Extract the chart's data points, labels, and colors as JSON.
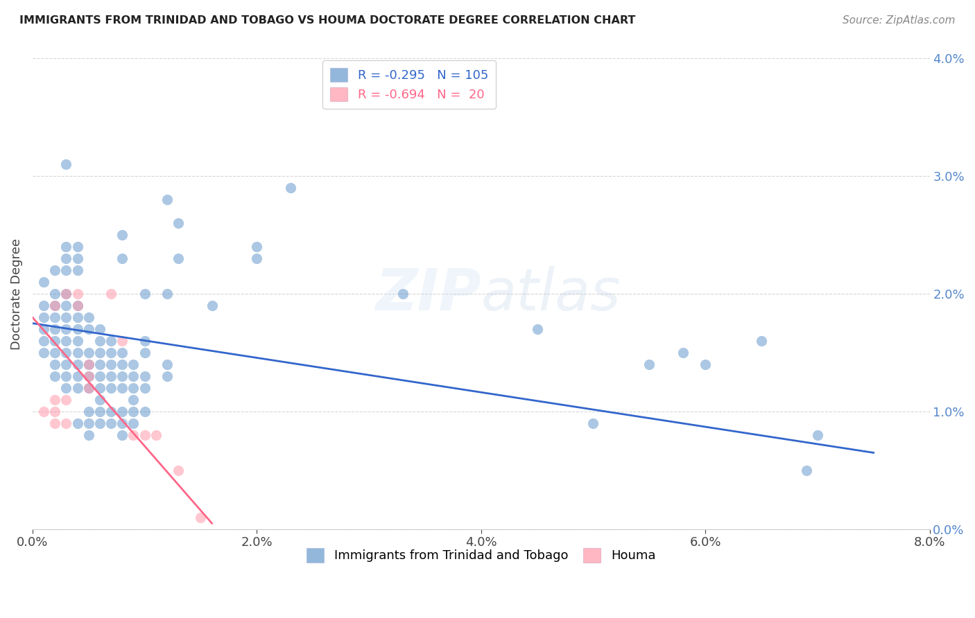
{
  "title": "IMMIGRANTS FROM TRINIDAD AND TOBAGO VS HOUMA DOCTORATE DEGREE CORRELATION CHART",
  "source": "Source: ZipAtlas.com",
  "ylabel": "Doctorate Degree",
  "xlim": [
    0.0,
    0.08
  ],
  "ylim": [
    0.0,
    0.04
  ],
  "legend_blue_R": "R = -0.295",
  "legend_blue_N": "N = 105",
  "legend_pink_R": "R = -0.694",
  "legend_pink_N": "N =  20",
  "legend_label_blue": "Immigrants from Trinidad and Tobago",
  "legend_label_pink": "Houma",
  "blue_color": "#6699CC",
  "pink_color": "#FF99AA",
  "blue_line_color": "#3366CC",
  "pink_line_color": "#FF6688",
  "watermark_zip": "ZIP",
  "watermark_atlas": "atlas",
  "blue_scatter": [
    [
      0.001,
      0.021
    ],
    [
      0.001,
      0.019
    ],
    [
      0.001,
      0.018
    ],
    [
      0.001,
      0.017
    ],
    [
      0.001,
      0.016
    ],
    [
      0.001,
      0.015
    ],
    [
      0.002,
      0.022
    ],
    [
      0.002,
      0.02
    ],
    [
      0.002,
      0.019
    ],
    [
      0.002,
      0.018
    ],
    [
      0.002,
      0.017
    ],
    [
      0.002,
      0.016
    ],
    [
      0.002,
      0.015
    ],
    [
      0.002,
      0.014
    ],
    [
      0.002,
      0.013
    ],
    [
      0.003,
      0.031
    ],
    [
      0.003,
      0.024
    ],
    [
      0.003,
      0.023
    ],
    [
      0.003,
      0.022
    ],
    [
      0.003,
      0.02
    ],
    [
      0.003,
      0.019
    ],
    [
      0.003,
      0.018
    ],
    [
      0.003,
      0.017
    ],
    [
      0.003,
      0.016
    ],
    [
      0.003,
      0.015
    ],
    [
      0.003,
      0.014
    ],
    [
      0.003,
      0.013
    ],
    [
      0.003,
      0.012
    ],
    [
      0.004,
      0.024
    ],
    [
      0.004,
      0.023
    ],
    [
      0.004,
      0.022
    ],
    [
      0.004,
      0.019
    ],
    [
      0.004,
      0.018
    ],
    [
      0.004,
      0.017
    ],
    [
      0.004,
      0.016
    ],
    [
      0.004,
      0.015
    ],
    [
      0.004,
      0.014
    ],
    [
      0.004,
      0.013
    ],
    [
      0.004,
      0.012
    ],
    [
      0.004,
      0.009
    ],
    [
      0.005,
      0.018
    ],
    [
      0.005,
      0.017
    ],
    [
      0.005,
      0.015
    ],
    [
      0.005,
      0.014
    ],
    [
      0.005,
      0.013
    ],
    [
      0.005,
      0.012
    ],
    [
      0.005,
      0.01
    ],
    [
      0.005,
      0.009
    ],
    [
      0.005,
      0.008
    ],
    [
      0.006,
      0.017
    ],
    [
      0.006,
      0.016
    ],
    [
      0.006,
      0.015
    ],
    [
      0.006,
      0.014
    ],
    [
      0.006,
      0.013
    ],
    [
      0.006,
      0.012
    ],
    [
      0.006,
      0.011
    ],
    [
      0.006,
      0.01
    ],
    [
      0.006,
      0.009
    ],
    [
      0.007,
      0.016
    ],
    [
      0.007,
      0.015
    ],
    [
      0.007,
      0.014
    ],
    [
      0.007,
      0.013
    ],
    [
      0.007,
      0.012
    ],
    [
      0.007,
      0.01
    ],
    [
      0.007,
      0.009
    ],
    [
      0.008,
      0.025
    ],
    [
      0.008,
      0.023
    ],
    [
      0.008,
      0.015
    ],
    [
      0.008,
      0.014
    ],
    [
      0.008,
      0.013
    ],
    [
      0.008,
      0.012
    ],
    [
      0.008,
      0.01
    ],
    [
      0.008,
      0.009
    ],
    [
      0.008,
      0.008
    ],
    [
      0.009,
      0.014
    ],
    [
      0.009,
      0.013
    ],
    [
      0.009,
      0.012
    ],
    [
      0.009,
      0.011
    ],
    [
      0.009,
      0.01
    ],
    [
      0.009,
      0.009
    ],
    [
      0.01,
      0.02
    ],
    [
      0.01,
      0.016
    ],
    [
      0.01,
      0.015
    ],
    [
      0.01,
      0.013
    ],
    [
      0.01,
      0.012
    ],
    [
      0.01,
      0.01
    ],
    [
      0.012,
      0.028
    ],
    [
      0.012,
      0.02
    ],
    [
      0.012,
      0.014
    ],
    [
      0.012,
      0.013
    ],
    [
      0.013,
      0.026
    ],
    [
      0.013,
      0.023
    ],
    [
      0.016,
      0.019
    ],
    [
      0.02,
      0.024
    ],
    [
      0.02,
      0.023
    ],
    [
      0.023,
      0.029
    ],
    [
      0.033,
      0.02
    ],
    [
      0.045,
      0.017
    ],
    [
      0.05,
      0.009
    ],
    [
      0.055,
      0.014
    ],
    [
      0.058,
      0.015
    ],
    [
      0.06,
      0.014
    ],
    [
      0.065,
      0.016
    ],
    [
      0.069,
      0.005
    ],
    [
      0.07,
      0.008
    ]
  ],
  "pink_scatter": [
    [
      0.001,
      0.01
    ],
    [
      0.002,
      0.019
    ],
    [
      0.002,
      0.011
    ],
    [
      0.002,
      0.01
    ],
    [
      0.002,
      0.009
    ],
    [
      0.003,
      0.02
    ],
    [
      0.003,
      0.011
    ],
    [
      0.003,
      0.009
    ],
    [
      0.004,
      0.02
    ],
    [
      0.004,
      0.019
    ],
    [
      0.005,
      0.014
    ],
    [
      0.005,
      0.013
    ],
    [
      0.005,
      0.012
    ],
    [
      0.007,
      0.02
    ],
    [
      0.008,
      0.016
    ],
    [
      0.009,
      0.008
    ],
    [
      0.01,
      0.008
    ],
    [
      0.011,
      0.008
    ],
    [
      0.013,
      0.005
    ],
    [
      0.015,
      0.001
    ]
  ],
  "blue_line_x": [
    0.0,
    0.075
  ],
  "blue_line_y": [
    0.0175,
    0.0065
  ],
  "pink_line_x": [
    0.0,
    0.016
  ],
  "pink_line_y": [
    0.018,
    0.0005
  ]
}
